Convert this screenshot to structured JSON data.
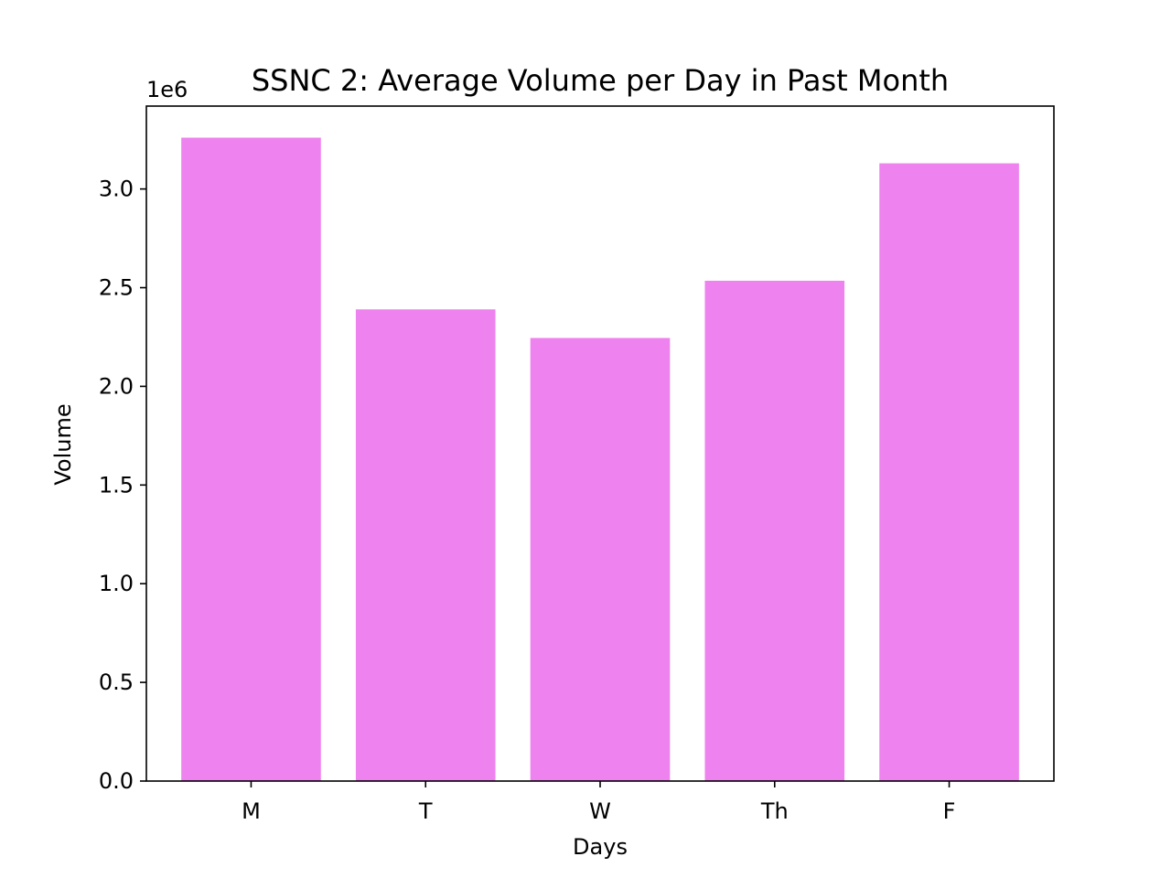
{
  "chart_data": {
    "type": "bar",
    "title": "SSNC 2: Average Volume per Day in Past Month",
    "xlabel": "Days",
    "ylabel": "Volume",
    "y_offset_label": "1e6",
    "categories": [
      "M",
      "T",
      "W",
      "Th",
      "F"
    ],
    "values": [
      3260000,
      2390000,
      2245000,
      2535000,
      3130000
    ],
    "ylim": [
      0,
      3420000
    ],
    "yticks": [
      0,
      500000,
      1000000,
      1500000,
      2000000,
      2500000,
      3000000
    ],
    "ytick_labels": [
      "0.0",
      "0.5",
      "1.0",
      "1.5",
      "2.0",
      "2.5",
      "3.0"
    ],
    "bar_color": "#ee82ee",
    "grid": false,
    "legend": "none"
  }
}
